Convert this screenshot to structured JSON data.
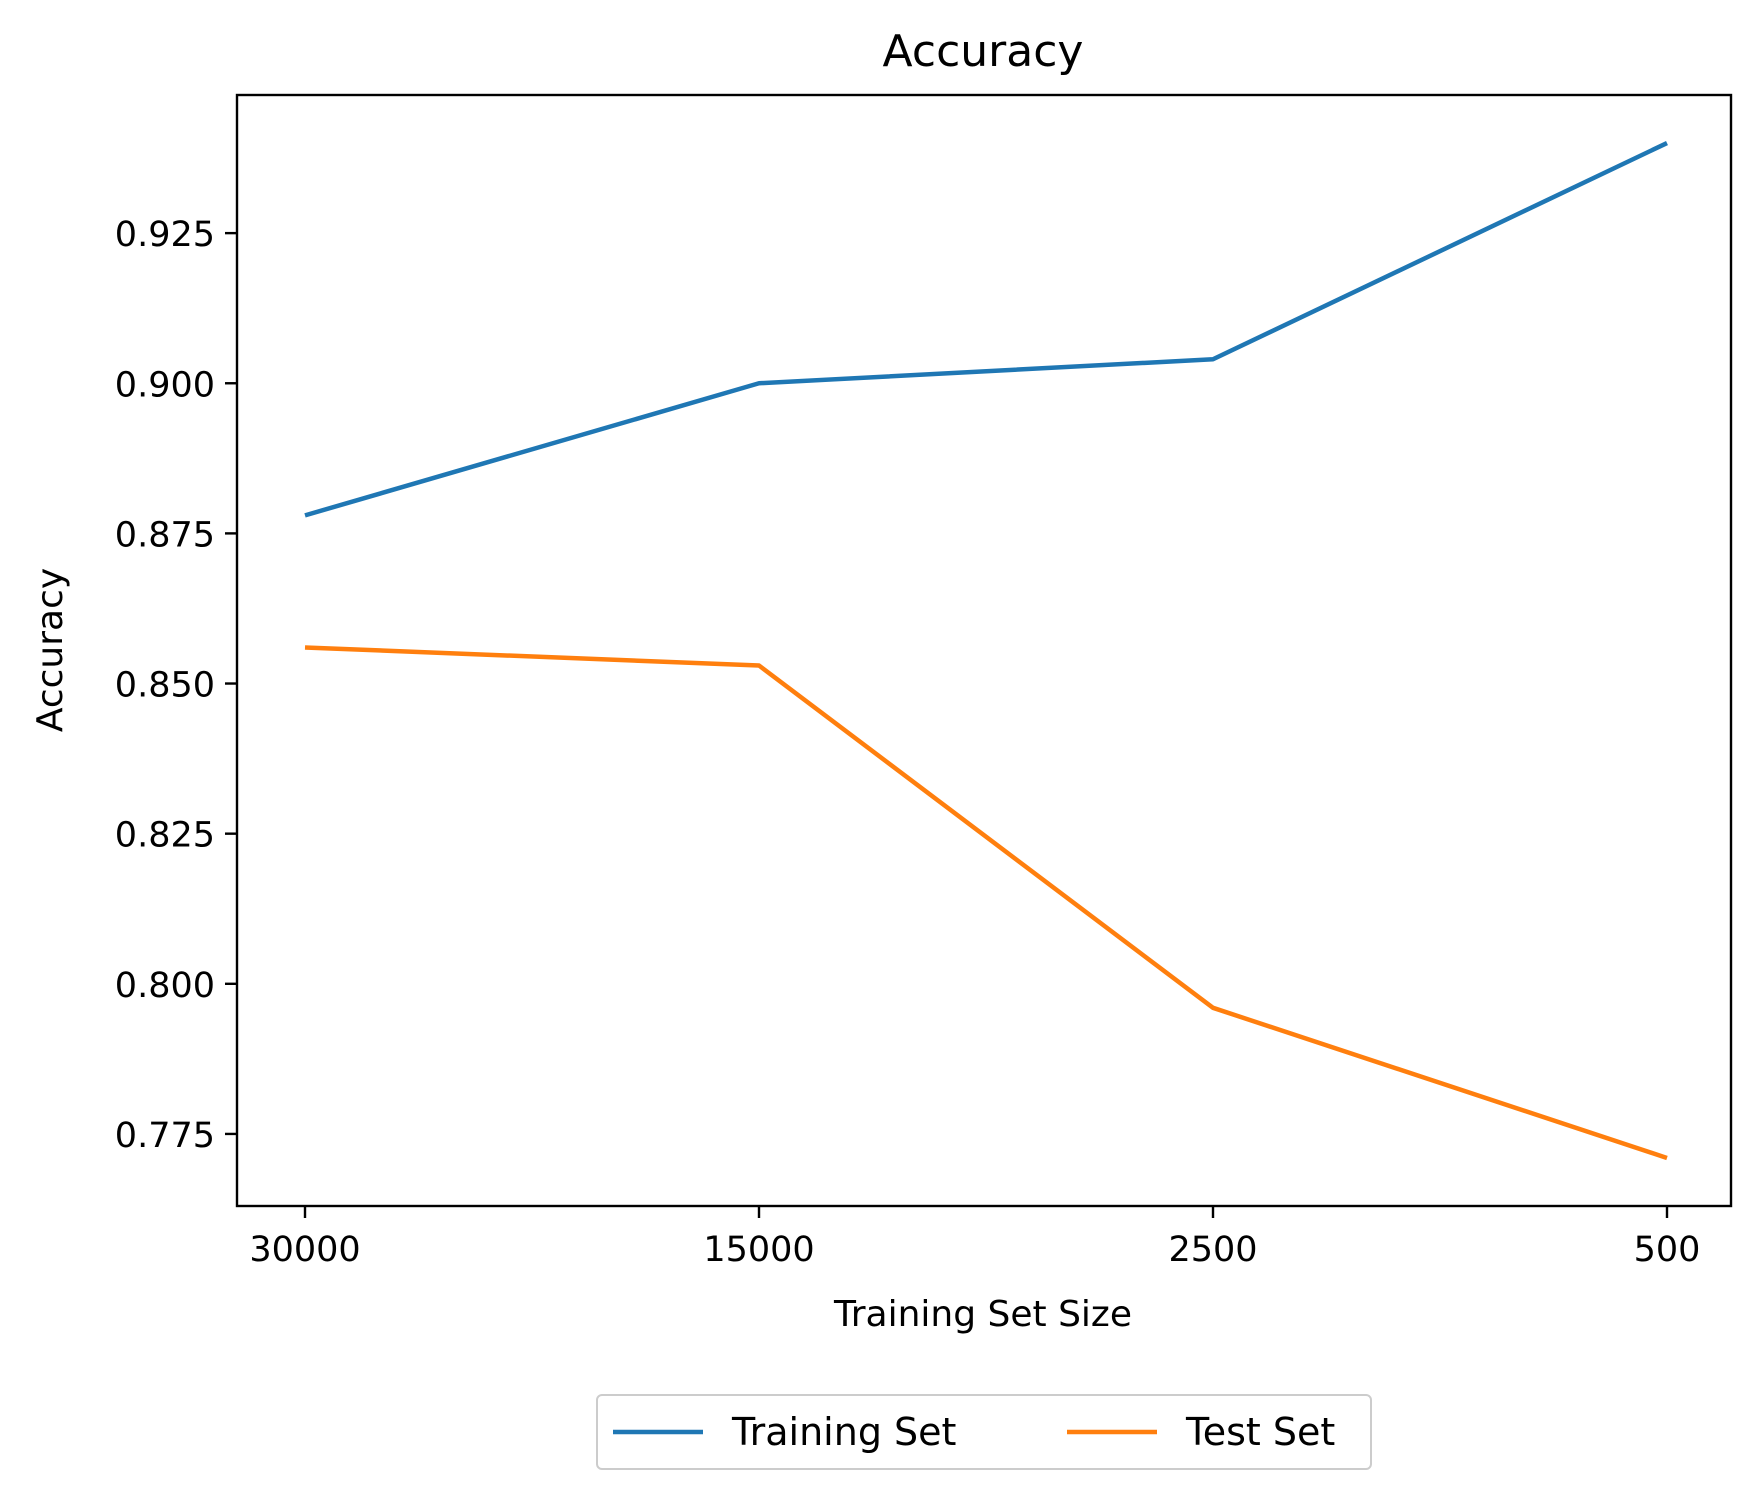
{
  "chart_data": {
    "type": "line",
    "title": "Accuracy",
    "xlabel": "Training Set Size",
    "ylabel": "Accuracy",
    "categories": [
      "30000",
      "15000",
      "2500",
      "500"
    ],
    "yticks": [
      0.775,
      0.8,
      0.825,
      0.85,
      0.875,
      0.9,
      0.925
    ],
    "ylim": [
      0.763,
      0.948
    ],
    "grid": false,
    "legend_position": "bottom-center",
    "series": [
      {
        "name": "Training Set",
        "color": "#1f77b4",
        "values": [
          0.878,
          0.9,
          0.904,
          0.94
        ]
      },
      {
        "name": "Test Set",
        "color": "#ff7f0e",
        "values": [
          0.856,
          0.853,
          0.796,
          0.771
        ]
      }
    ]
  }
}
